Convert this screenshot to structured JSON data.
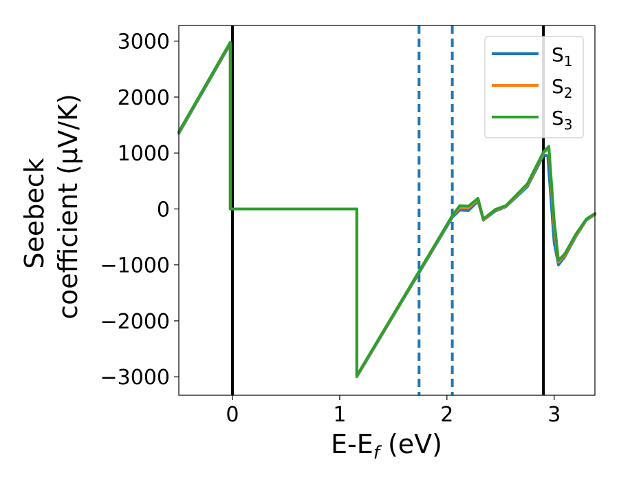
{
  "chart_data": {
    "type": "line",
    "xlabel": "E-E",
    "xlabel_sub": "f",
    "xlabel_unit": " (eV)",
    "ylabel_line1": "Seebeck",
    "ylabel_line2": "coefficient  (μV/K)",
    "xlim": [
      -0.5,
      3.38
    ],
    "ylim": [
      -3330,
      3280
    ],
    "xticks": [
      0,
      1,
      2,
      3
    ],
    "xtick_labels": [
      "0",
      "1",
      "2",
      "3"
    ],
    "yticks": [
      3000,
      2000,
      1000,
      0,
      -1000,
      -2000,
      -3000
    ],
    "ytick_labels": [
      "3000",
      "2000",
      "1000",
      "0",
      "−1000",
      "−2000",
      "−3000"
    ],
    "vlines_solid": [
      0,
      2.9
    ],
    "vlines_dashed": [
      1.74,
      2.05
    ],
    "vline_colors": {
      "solid": "#000000",
      "dashed": "#1f77b4"
    },
    "legend_position": "top-right",
    "series": [
      {
        "name": "S",
        "sub": "1",
        "color": "#1f77b4",
        "x": [
          -0.5,
          -0.02,
          -0.02,
          1.16,
          1.16,
          2.05,
          2.12,
          2.2,
          2.29,
          2.34,
          2.45,
          2.55,
          2.75,
          2.9,
          2.94,
          3.0,
          3.04,
          3.1,
          3.2,
          3.3,
          3.38
        ],
        "y": [
          1350,
          2950,
          0,
          0,
          -3000,
          -150,
          -20,
          -30,
          140,
          -200,
          -40,
          40,
          400,
          960,
          950,
          -600,
          -1000,
          -850,
          -500,
          -200,
          -100
        ]
      },
      {
        "name": "S",
        "sub": "2",
        "color": "#ff7f0e",
        "x": [
          -0.5,
          -0.02,
          -0.02,
          1.16,
          1.16,
          2.05,
          2.12,
          2.2,
          2.29,
          2.34,
          2.45,
          2.55,
          2.75,
          2.9,
          2.95,
          3.0,
          3.04,
          3.1,
          3.2,
          3.3,
          3.38
        ],
        "y": [
          1370,
          2970,
          0,
          0,
          -2990,
          -130,
          30,
          20,
          170,
          -190,
          -20,
          50,
          430,
          1000,
          1080,
          -300,
          -950,
          -820,
          -480,
          -190,
          -90
        ]
      },
      {
        "name": "S",
        "sub": "3",
        "color": "#2ca02c",
        "x": [
          -0.5,
          -0.02,
          -0.02,
          1.16,
          1.16,
          2.05,
          2.12,
          2.2,
          2.29,
          2.34,
          2.45,
          2.55,
          2.75,
          2.9,
          2.95,
          3.0,
          3.04,
          3.1,
          3.2,
          3.3,
          3.38
        ],
        "y": [
          1380,
          2980,
          0,
          0,
          -2980,
          -120,
          60,
          50,
          190,
          -180,
          -10,
          60,
          450,
          1020,
          1120,
          -200,
          -920,
          -800,
          -460,
          -180,
          -80
        ]
      }
    ]
  }
}
